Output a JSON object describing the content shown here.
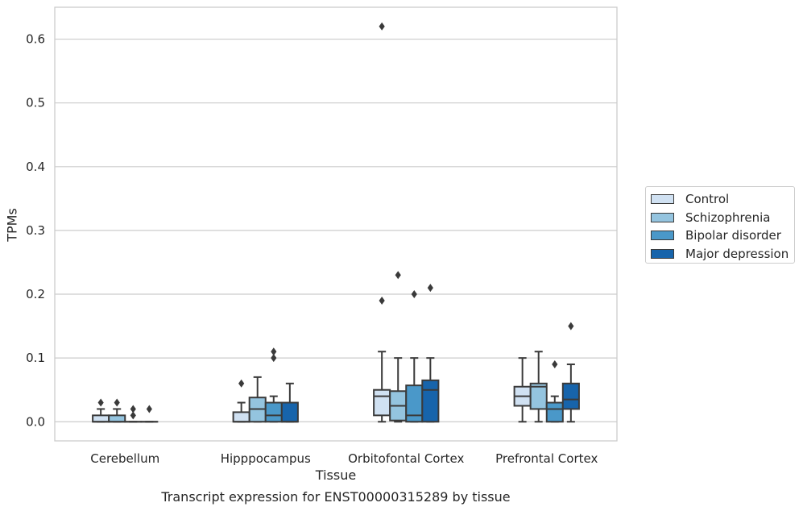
{
  "chart_data": {
    "type": "box",
    "title": "Transcript expression for ENST00000315289 by tissue",
    "xlabel": "Tissue",
    "ylabel": "TPMs",
    "ylim": [
      -0.03,
      0.65
    ],
    "yticks": [
      0.0,
      0.1,
      0.2,
      0.3,
      0.4,
      0.5,
      0.6
    ],
    "ytick_labels": [
      "0.0",
      "0.1",
      "0.2",
      "0.3",
      "0.4",
      "0.5",
      "0.6"
    ],
    "grid": true,
    "legend_position": "right",
    "categories": [
      "Cerebellum",
      "Hipppocampus",
      "Orbitofontal Cortex",
      "Prefrontal Cortex"
    ],
    "series": [
      {
        "name": "Control",
        "color": "#d0e1f2",
        "boxes": [
          {
            "whislo": 0.0,
            "q1": 0.0,
            "med": 0.0,
            "q3": 0.01,
            "whishi": 0.02,
            "fliers": [
              0.03
            ]
          },
          {
            "whislo": 0.0,
            "q1": 0.0,
            "med": 0.0,
            "q3": 0.015,
            "whishi": 0.03,
            "fliers": [
              0.06
            ]
          },
          {
            "whislo": 0.0,
            "q1": 0.01,
            "med": 0.04,
            "q3": 0.05,
            "whishi": 0.11,
            "fliers": [
              0.19,
              0.62
            ]
          },
          {
            "whislo": 0.0,
            "q1": 0.025,
            "med": 0.04,
            "q3": 0.055,
            "whishi": 0.1,
            "fliers": []
          }
        ]
      },
      {
        "name": "Schizophrenia",
        "color": "#94c4df",
        "boxes": [
          {
            "whislo": 0.0,
            "q1": 0.0,
            "med": 0.0,
            "q3": 0.01,
            "whishi": 0.02,
            "fliers": [
              0.03
            ]
          },
          {
            "whislo": 0.0,
            "q1": 0.0,
            "med": 0.02,
            "q3": 0.038,
            "whishi": 0.07,
            "fliers": []
          },
          {
            "whislo": 0.0,
            "q1": 0.002,
            "med": 0.025,
            "q3": 0.048,
            "whishi": 0.1,
            "fliers": [
              0.23
            ]
          },
          {
            "whislo": 0.0,
            "q1": 0.02,
            "med": 0.055,
            "q3": 0.06,
            "whishi": 0.11,
            "fliers": []
          }
        ]
      },
      {
        "name": "Bipolar disorder",
        "color": "#4a98c9",
        "boxes": [
          {
            "whislo": 0.0,
            "q1": 0.0,
            "med": 0.0,
            "q3": 0.0,
            "whishi": 0.0,
            "fliers": [
              0.01,
              0.02
            ]
          },
          {
            "whislo": 0.0,
            "q1": 0.0,
            "med": 0.01,
            "q3": 0.03,
            "whishi": 0.04,
            "fliers": [
              0.1,
              0.11
            ]
          },
          {
            "whislo": 0.0,
            "q1": 0.0,
            "med": 0.01,
            "q3": 0.057,
            "whishi": 0.1,
            "fliers": [
              0.2
            ]
          },
          {
            "whislo": 0.0,
            "q1": 0.0,
            "med": 0.02,
            "q3": 0.03,
            "whishi": 0.04,
            "fliers": [
              0.09
            ]
          }
        ]
      },
      {
        "name": "Major depression",
        "color": "#1764ab",
        "boxes": [
          {
            "whislo": 0.0,
            "q1": 0.0,
            "med": 0.0,
            "q3": 0.0,
            "whishi": 0.0,
            "fliers": [
              0.02
            ]
          },
          {
            "whislo": 0.0,
            "q1": 0.0,
            "med": 0.0,
            "q3": 0.03,
            "whishi": 0.06,
            "fliers": []
          },
          {
            "whislo": 0.0,
            "q1": 0.0,
            "med": 0.05,
            "q3": 0.065,
            "whishi": 0.1,
            "fliers": [
              0.21
            ]
          },
          {
            "whislo": 0.0,
            "q1": 0.02,
            "med": 0.035,
            "q3": 0.06,
            "whishi": 0.09,
            "fliers": [
              0.15
            ]
          }
        ]
      }
    ]
  }
}
